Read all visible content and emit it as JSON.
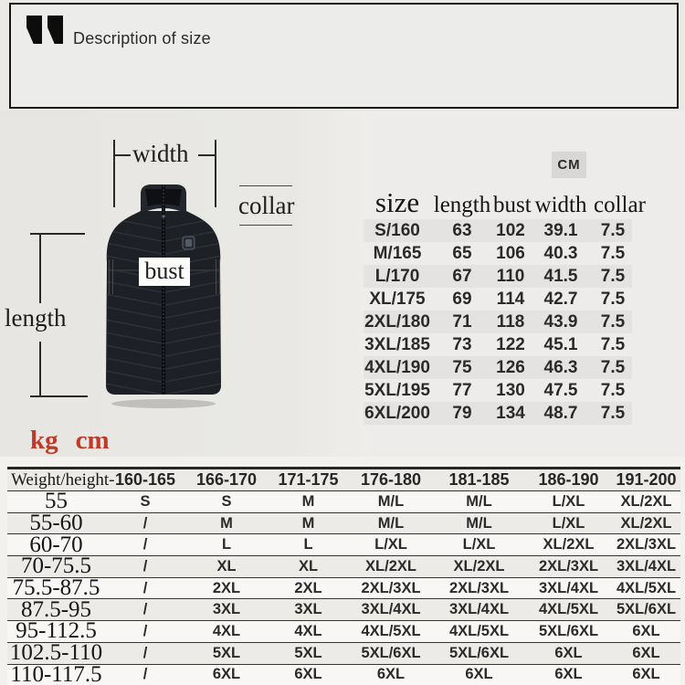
{
  "header": {
    "title": "Description of size",
    "icon": "quote-marks-icon"
  },
  "diagram": {
    "labels": {
      "width": "width",
      "collar": "collar",
      "bust": "bust",
      "length": "length"
    },
    "product": "black-heated-puffer-vest"
  },
  "size_table": {
    "unit_badge": "CM",
    "columns": [
      "size",
      "length",
      "bust",
      "width",
      "collar"
    ],
    "rows": [
      [
        "S/160",
        "63",
        "102",
        "39.1",
        "7.5"
      ],
      [
        "M/165",
        "65",
        "106",
        "40.3",
        "7.5"
      ],
      [
        "L/170",
        "67",
        "110",
        "41.5",
        "7.5"
      ],
      [
        "XL/175",
        "69",
        "114",
        "42.7",
        "7.5"
      ],
      [
        "2XL/180",
        "71",
        "118",
        "43.9",
        "7.5"
      ],
      [
        "3XL/185",
        "73",
        "122",
        "45.1",
        "7.5"
      ],
      [
        "4XL/190",
        "75",
        "126",
        "46.3",
        "7.5"
      ],
      [
        "5XL/195",
        "77",
        "130",
        "47.5",
        "7.5"
      ],
      [
        "6XL/200",
        "79",
        "134",
        "48.7",
        "7.5"
      ]
    ]
  },
  "units_note": {
    "kg": "kg",
    "cm": "cm"
  },
  "weight_table": {
    "corner_label": "Weight/height-",
    "height_columns": [
      "160-165",
      "166-170",
      "171-175",
      "176-180",
      "181-185",
      "186-190",
      "191-200"
    ],
    "rows": [
      {
        "weight": "55",
        "cells": [
          "S",
          "S",
          "M",
          "M/L",
          "M/L",
          "L/XL",
          "XL/2XL"
        ]
      },
      {
        "weight": "55-60",
        "cells": [
          "/",
          "M",
          "M",
          "M/L",
          "M/L",
          "L/XL",
          "XL/2XL"
        ]
      },
      {
        "weight": "60-70",
        "cells": [
          "/",
          "L",
          "L",
          "L/XL",
          "L/XL",
          "XL/2XL",
          "2XL/3XL"
        ]
      },
      {
        "weight": "70-75.5",
        "cells": [
          "/",
          "XL",
          "XL",
          "XL/2XL",
          "XL/2XL",
          "2XL/3XL",
          "3XL/4XL"
        ]
      },
      {
        "weight": "75.5-87.5",
        "cells": [
          "/",
          "2XL",
          "2XL",
          "2XL/3XL",
          "2XL/3XL",
          "3XL/4XL",
          "4XL/5XL"
        ]
      },
      {
        "weight": "87.5-95",
        "cells": [
          "/",
          "3XL",
          "3XL",
          "3XL/4XL",
          "3XL/4XL",
          "4XL/5XL",
          "5XL/6XL"
        ]
      },
      {
        "weight": "95-112.5",
        "cells": [
          "/",
          "4XL",
          "4XL",
          "4XL/5XL",
          "4XL/5XL",
          "5XL/6XL",
          "6XL"
        ]
      },
      {
        "weight": "102.5-110",
        "cells": [
          "/",
          "5XL",
          "5XL",
          "5XL/6XL",
          "5XL/6XL",
          "6XL",
          "6XL"
        ]
      },
      {
        "weight": "110-117.5",
        "cells": [
          "/",
          "6XL",
          "6XL",
          "6XL",
          "6XL",
          "6XL",
          "6XL"
        ]
      }
    ]
  },
  "colors": {
    "accent_red": "#bf3a2b",
    "ink": "#1d1d1d",
    "badge_bg": "#d8d7d5",
    "header_panel_bg": "#ececeb",
    "page_bg": "#eae9e6",
    "vest": "#1d2025"
  }
}
